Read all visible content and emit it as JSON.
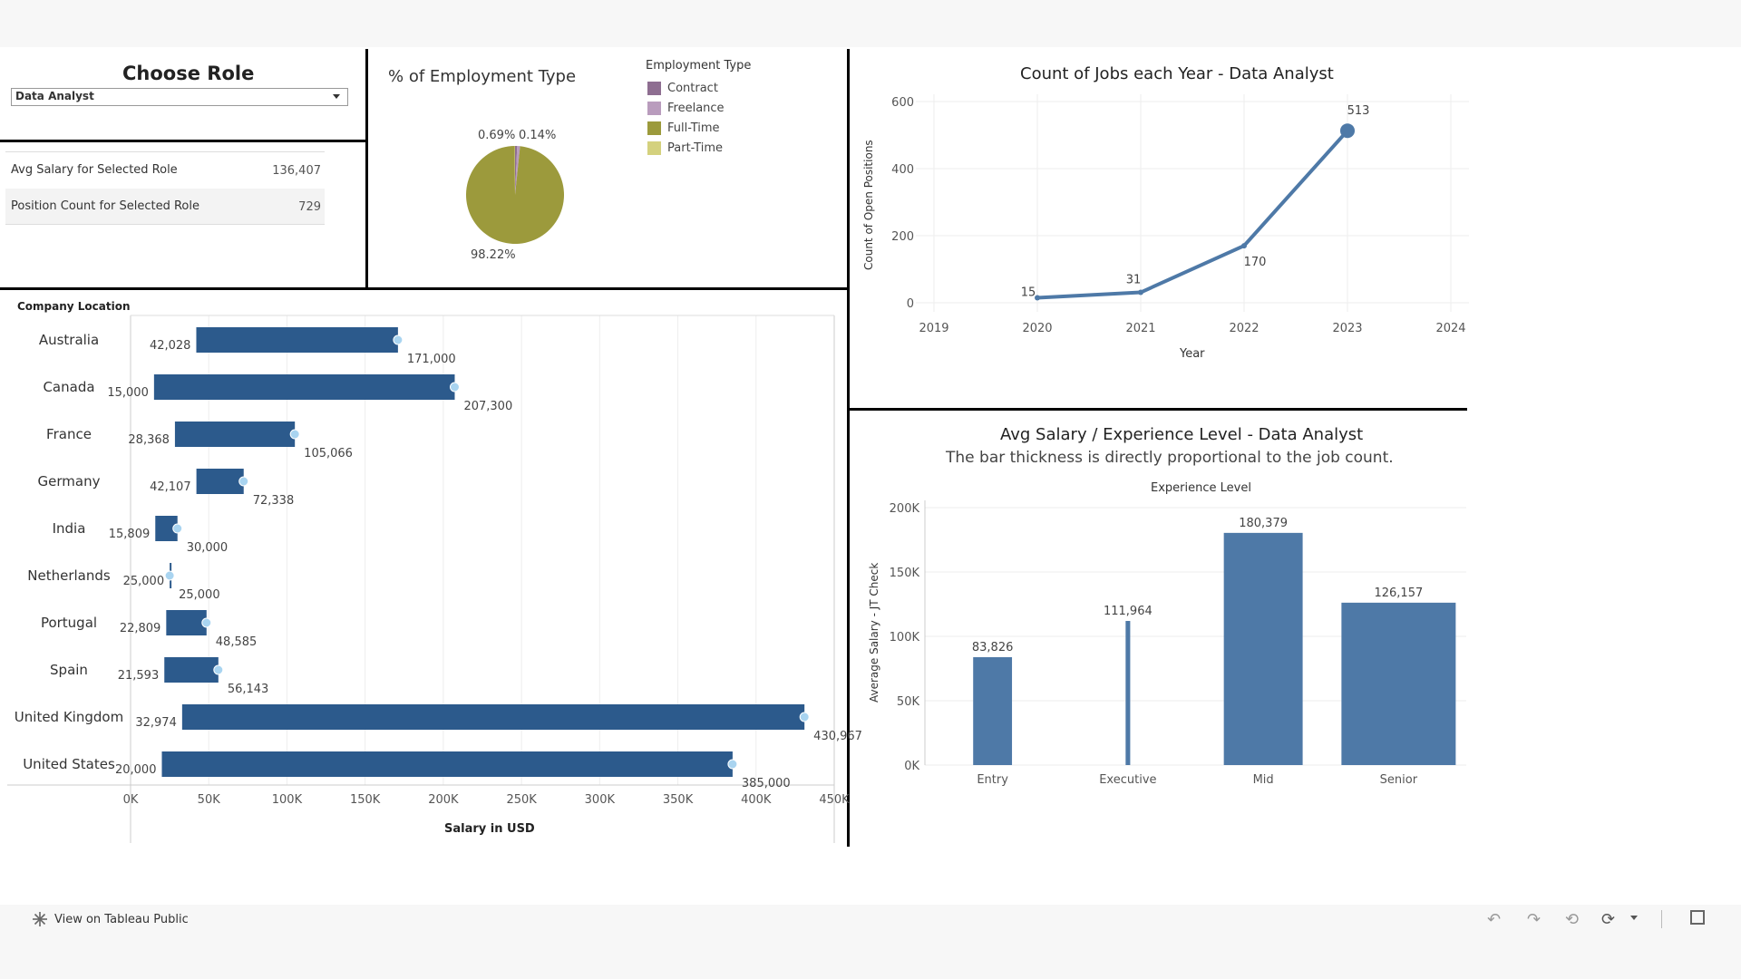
{
  "filter": {
    "title": "Choose Role",
    "selected": "Data Analyst"
  },
  "kpis": [
    {
      "label": "Avg Salary for Selected Role",
      "value": "136,407"
    },
    {
      "label": "Position Count for Selected Role",
      "value": "729"
    }
  ],
  "employment": {
    "title": "% of Employment Type",
    "legend_title": "Employment Type",
    "legend": [
      {
        "label": "Contract",
        "color": "#8e6e91"
      },
      {
        "label": "Freelance",
        "color": "#b99cbd"
      },
      {
        "label": "Full-Time",
        "color": "#9c9a3c"
      },
      {
        "label": "Part-Time",
        "color": "#d4d17e"
      }
    ],
    "labels": {
      "contract": "0.69%",
      "parttime": "0.14%",
      "fulltime": "98.22%"
    }
  },
  "location": {
    "header": "Company Location",
    "xlabel": "Salary in USD"
  },
  "jobs_chart": {
    "title": "Count of Jobs each Year - Data Analyst",
    "xlabel": "Year",
    "ylabel": "Count of Open Positions"
  },
  "exp_chart": {
    "title": "Avg Salary / Experience Level - Data Analyst",
    "subtitle": "The bar thickness is directly proportional to the job count.",
    "header": "Experience Level",
    "ylabel": "Average Salary - JT Check"
  },
  "footer": {
    "link": "View on Tableau Public"
  },
  "chart_data": [
    {
      "type": "bar",
      "title": "",
      "xlabel": "Salary in USD",
      "ylabel": "Company Location",
      "xlim": [
        0,
        450000
      ],
      "x_ticks": [
        "0K",
        "50K",
        "100K",
        "150K",
        "200K",
        "250K",
        "300K",
        "350K",
        "400K",
        "450K"
      ],
      "categories": [
        "Australia",
        "Canada",
        "France",
        "Germany",
        "India",
        "Netherlands",
        "Portugal",
        "Spain",
        "United Kingdom",
        "United States"
      ],
      "series": [
        {
          "name": "min",
          "values": [
            42028,
            15000,
            28368,
            42107,
            15809,
            25000,
            22809,
            21593,
            32974,
            20000
          ]
        },
        {
          "name": "max",
          "values": [
            171000,
            207300,
            105066,
            72338,
            30000,
            25000,
            48585,
            56143,
            430967,
            385000
          ]
        }
      ],
      "min_labels": [
        "42,028",
        "15,000",
        "28,368",
        "42,107",
        "15,809",
        "25,000",
        "22,809",
        "21,593",
        "32,974",
        "20,000"
      ],
      "max_labels": [
        "171,000",
        "207,300",
        "105,066",
        "72,338",
        "30,000",
        "25,000",
        "48,585",
        "56,143",
        "430,967",
        "385,000"
      ],
      "color": "#2c5a8c",
      "grid": true
    },
    {
      "type": "line",
      "title": "Count of Jobs each Year - Data Analyst",
      "xlabel": "Year",
      "ylabel": "Count of Open Positions",
      "x": [
        2020,
        2021,
        2022,
        2023
      ],
      "values": [
        15,
        31,
        170,
        513
      ],
      "value_labels": [
        "15",
        "31",
        "170",
        "513"
      ],
      "xlim": [
        2019,
        2024
      ],
      "ylim": [
        0,
        600
      ],
      "x_ticks": [
        "2019",
        "2020",
        "2021",
        "2022",
        "2023",
        "2024"
      ],
      "y_ticks": [
        "0",
        "200",
        "400",
        "600"
      ],
      "color": "#4e79a7",
      "grid": true
    },
    {
      "type": "bar",
      "title": "Avg Salary / Experience Level - Data Analyst",
      "subtitle": "The bar thickness is directly proportional to the job count.",
      "xlabel": "Experience Level",
      "ylabel": "Average Salary - JT Check",
      "categories": [
        "Entry",
        "Executive",
        "Mid",
        "Senior"
      ],
      "values": [
        83826,
        111964,
        180379,
        126157
      ],
      "value_labels": [
        "83,826",
        "111,964",
        "180,379",
        "126,157"
      ],
      "relative_thickness": [
        0.34,
        0.04,
        0.69,
        1.0
      ],
      "ylim": [
        0,
        200000
      ],
      "y_ticks": [
        "0K",
        "50K",
        "100K",
        "150K",
        "200K"
      ],
      "color": "#4e79a7",
      "grid": true
    },
    {
      "type": "pie",
      "title": "% of Employment Type",
      "categories": [
        "Contract",
        "Freelance",
        "Full-Time",
        "Part-Time"
      ],
      "values": [
        0.69,
        0.95,
        98.22,
        0.14
      ],
      "colors": [
        "#8e6e91",
        "#b99cbd",
        "#9c9a3c",
        "#d4d17e"
      ]
    }
  ]
}
